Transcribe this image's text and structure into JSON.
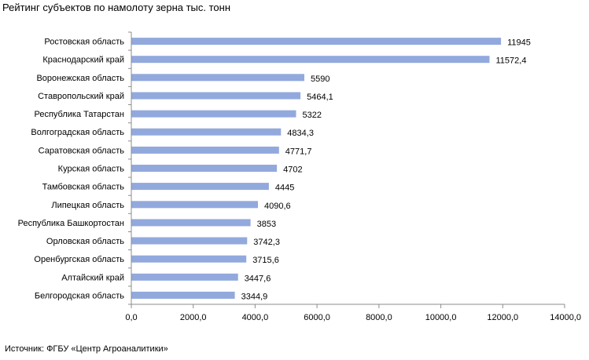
{
  "title": "Рейтинг субъектов по намолоту зерна тыс. тонн",
  "source": "Источник: ФГБУ «Центр Агроаналитики»",
  "colors": {
    "bar": "#92a9dd",
    "axis": "#8c8c8c"
  },
  "chart_data": {
    "type": "bar",
    "orientation": "horizontal",
    "title": "Рейтинг субъектов по намолоту зерна тыс. тонн",
    "categories": [
      "Ростовская область",
      "Краснодарский край",
      "Воронежская область",
      "Ставропольский край",
      "Республика Татарстан",
      "Волгоградская область",
      "Саратовская область",
      "Курская область",
      "Тамбовская область",
      "Липецкая область",
      "Республика Башкортостан",
      "Орловская область",
      "Оренбургская область",
      "Алтайский край",
      "Белгородская область"
    ],
    "values": [
      11945,
      11572.4,
      5590,
      5464.1,
      5322,
      4834.3,
      4771.7,
      4702,
      4445,
      4090.6,
      3853,
      3742.3,
      3715.6,
      3447.6,
      3344.9
    ],
    "value_labels": [
      "11945",
      "11572,4",
      "5590",
      "5464,1",
      "5322",
      "4834,3",
      "4771,7",
      "4702",
      "4445",
      "4090,6",
      "3853",
      "3742,3",
      "3715,6",
      "3447,6",
      "3344,9"
    ],
    "xlim": [
      0,
      14000
    ],
    "xticks": [
      0,
      2000,
      4000,
      6000,
      8000,
      10000,
      12000,
      14000
    ],
    "xtick_labels": [
      "0,0",
      "2000,0",
      "4000,0",
      "6000,0",
      "8000,0",
      "10000,0",
      "12000,0",
      "14000,0"
    ],
    "grid": false,
    "legend": "none"
  }
}
